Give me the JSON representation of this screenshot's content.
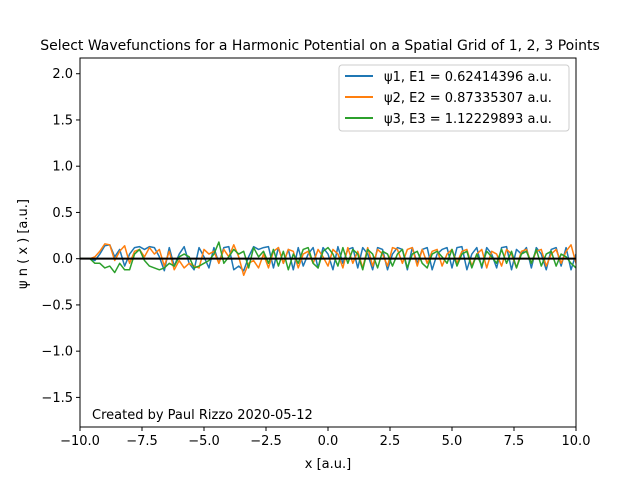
{
  "chart_data": {
    "type": "line",
    "title": "Select Wavefunctions for a Harmonic Potential on a Spatial Grid of 1, 2, 3 Points",
    "xlabel": "x [a.u.]",
    "ylabel": "ψ n ( x ) [a.u.]",
    "xlim": [
      -10,
      10
    ],
    "ylim": [
      -1.82,
      2.17
    ],
    "xticks": [
      -10.0,
      -7.5,
      -5.0,
      -2.5,
      0.0,
      2.5,
      5.0,
      7.5,
      10.0
    ],
    "yticks": [
      -1.5,
      -1.0,
      -0.5,
      0.0,
      0.5,
      1.0,
      1.5,
      2.0
    ],
    "grid": false,
    "legend_position": "top-right",
    "annotation": "Created by Paul Rizzo 2020-05-12",
    "zero_line": {
      "y": 0,
      "color": "#000000"
    },
    "series": [
      {
        "name": "ψ1, E1 = 0.62414396 a.u.",
        "color": "#1f77b4",
        "x": [
          -10,
          -9.8,
          -9.6,
          -9.4,
          -9.2,
          -9,
          -8.8,
          -8.6,
          -8.4,
          -8.2,
          -8,
          -7.8,
          -7.6,
          -7.4,
          -7.2,
          -7,
          -6.8,
          -6.6,
          -6.4,
          -6.2,
          -6,
          -5.8,
          -5.6,
          -5.4,
          -5.2,
          -5,
          -4.8,
          -4.6,
          -4.4,
          -4.2,
          -4,
          -3.8,
          -3.6,
          -3.4,
          -3.2,
          -3,
          -2.8,
          -2.6,
          -2.4,
          -2.2,
          -2,
          -1.8,
          -1.6,
          -1.4,
          -1.2,
          -1,
          -0.8,
          -0.6,
          -0.4,
          -0.2,
          0,
          0.2,
          0.4,
          0.6,
          0.8,
          1,
          1.2,
          1.4,
          1.6,
          1.8,
          2,
          2.2,
          2.4,
          2.6,
          2.8,
          3,
          3.2,
          3.4,
          3.6,
          3.8,
          4,
          4.2,
          4.4,
          4.6,
          4.8,
          5,
          5.2,
          5.4,
          5.6,
          5.8,
          6,
          6.2,
          6.4,
          6.6,
          6.8,
          7,
          7.2,
          7.4,
          7.6,
          7.8,
          8,
          8.2,
          8.4,
          8.6,
          8.8,
          9,
          9.2,
          9.4,
          9.6,
          9.8,
          10
        ],
        "y": [
          0,
          0,
          0,
          -0.02,
          0.05,
          0.14,
          0.15,
          0.02,
          0.1,
          -0.08,
          0.05,
          0.12,
          0.13,
          0.1,
          0.13,
          0.12,
          0.02,
          -0.13,
          0.12,
          -0.08,
          0.05,
          0.13,
          -0.05,
          -0.12,
          0.12,
          0.02,
          -0.1,
          0.12,
          -0.05,
          0.12,
          0.13,
          -0.12,
          -0.08,
          -0.13,
          0.02,
          0.13,
          0.1,
          0.12,
          0.13,
          -0.1,
          0.12,
          -0.05,
          0.1,
          -0.12,
          0.12,
          -0.08,
          0.05,
          0.12,
          -0.1,
          0.12,
          0.05,
          -0.12,
          0.13,
          -0.05,
          0.1,
          0.12,
          -0.1,
          0.12,
          0.05,
          -0.12,
          0.12,
          0.1,
          -0.12,
          0.05,
          0.12,
          0.1,
          -0.12,
          0.12,
          -0.05,
          0.1,
          0.12,
          -0.12,
          0.05,
          0.1,
          0.12,
          -0.1,
          0.12,
          0.13,
          -0.12,
          0.05,
          0.12,
          -0.1,
          0.12,
          0.05,
          -0.1,
          0.12,
          0.13,
          -0.12,
          0.1,
          0.05,
          0.12,
          -0.1,
          0.12,
          0.05,
          -0.12,
          0.1,
          0.12,
          -0.08,
          0.12,
          -0.12,
          0.05
        ]
      },
      {
        "name": "ψ2, E2 = 0.87335307 a.u.",
        "color": "#ff7f0e",
        "x": [
          -10,
          -9.8,
          -9.6,
          -9.4,
          -9.2,
          -9,
          -8.8,
          -8.6,
          -8.4,
          -8.2,
          -8,
          -7.8,
          -7.6,
          -7.4,
          -7.2,
          -7,
          -6.8,
          -6.6,
          -6.4,
          -6.2,
          -6,
          -5.8,
          -5.6,
          -5.4,
          -5.2,
          -5,
          -4.8,
          -4.6,
          -4.4,
          -4.2,
          -4,
          -3.8,
          -3.6,
          -3.4,
          -3.2,
          -3,
          -2.8,
          -2.6,
          -2.4,
          -2.2,
          -2,
          -1.8,
          -1.6,
          -1.4,
          -1.2,
          -1,
          -0.8,
          -0.6,
          -0.4,
          -0.2,
          0,
          0.2,
          0.4,
          0.6,
          0.8,
          1,
          1.2,
          1.4,
          1.6,
          1.8,
          2,
          2.2,
          2.4,
          2.6,
          2.8,
          3,
          3.2,
          3.4,
          3.6,
          3.8,
          4,
          4.2,
          4.4,
          4.6,
          4.8,
          5,
          5.2,
          5.4,
          5.6,
          5.8,
          6,
          6.2,
          6.4,
          6.6,
          6.8,
          7,
          7.2,
          7.4,
          7.6,
          7.8,
          8,
          8.2,
          8.4,
          8.6,
          8.8,
          9,
          9.2,
          9.4,
          9.6,
          9.8,
          10
        ],
        "y": [
          0,
          0,
          0,
          0.02,
          0.08,
          0.16,
          0.15,
          -0.02,
          0.08,
          0.14,
          -0.05,
          0.08,
          0.1,
          0.02,
          0.12,
          0.05,
          0.1,
          -0.08,
          0.08,
          -0.12,
          -0.02,
          -0.1,
          -0.05,
          -0.08,
          -0.1,
          0.1,
          0.05,
          0.08,
          -0.05,
          0.1,
          0.02,
          0.15,
          0.02,
          -0.18,
          -0.05,
          -0.02,
          -0.1,
          0.05,
          -0.1,
          0.08,
          0.12,
          -0.05,
          0.1,
          0.08,
          -0.1,
          0.05,
          0.08,
          -0.05,
          0.1,
          0.02,
          -0.08,
          0.1,
          0.05,
          -0.1,
          0.12,
          -0.05,
          0.08,
          -0.1,
          0.12,
          -0.08,
          0.1,
          0.05,
          -0.08,
          0.12,
          0.1,
          -0.05,
          0.1,
          0.12,
          -0.08,
          0.1,
          -0.05,
          0.08,
          0.1,
          -0.08,
          0.05,
          0.1,
          -0.05,
          0.08,
          0.1,
          -0.08,
          0.05,
          0.1,
          -0.1,
          0.08,
          0.05,
          -0.08,
          0.1,
          0.05,
          -0.1,
          0.08,
          0.1,
          -0.05,
          0.08,
          0.1,
          -0.08,
          0.05,
          0.1,
          -0.05,
          0.08,
          0.15,
          -0.05
        ]
      },
      {
        "name": "ψ3, E3 = 1.12229893 a.u.",
        "color": "#2ca02c",
        "x": [
          -10,
          -9.8,
          -9.6,
          -9.4,
          -9.2,
          -9,
          -8.8,
          -8.6,
          -8.4,
          -8.2,
          -8,
          -7.8,
          -7.6,
          -7.4,
          -7.2,
          -7,
          -6.8,
          -6.6,
          -6.4,
          -6.2,
          -6,
          -5.8,
          -5.6,
          -5.4,
          -5.2,
          -5,
          -4.8,
          -4.6,
          -4.4,
          -4.2,
          -4,
          -3.8,
          -3.6,
          -3.4,
          -3.2,
          -3,
          -2.8,
          -2.6,
          -2.4,
          -2.2,
          -2,
          -1.8,
          -1.6,
          -1.4,
          -1.2,
          -1,
          -0.8,
          -0.6,
          -0.4,
          -0.2,
          0,
          0.2,
          0.4,
          0.6,
          0.8,
          1,
          1.2,
          1.4,
          1.6,
          1.8,
          2,
          2.2,
          2.4,
          2.6,
          2.8,
          3,
          3.2,
          3.4,
          3.6,
          3.8,
          4,
          4.2,
          4.4,
          4.6,
          4.8,
          5,
          5.2,
          5.4,
          5.6,
          5.8,
          6,
          6.2,
          6.4,
          6.6,
          6.8,
          7,
          7.2,
          7.4,
          7.6,
          7.8,
          8,
          8.2,
          8.4,
          8.6,
          8.8,
          9,
          9.2,
          9.4,
          9.6,
          9.8,
          10
        ],
        "y": [
          0,
          0,
          0,
          -0.05,
          -0.05,
          -0.1,
          -0.08,
          -0.15,
          -0.05,
          -0.12,
          -0.12,
          0.05,
          0.1,
          -0.02,
          -0.08,
          -0.1,
          -0.12,
          -0.1,
          -0.05,
          -0.08,
          0.02,
          0.05,
          0.02,
          -0.1,
          -0.08,
          -0.05,
          -0.02,
          0.05,
          0.18,
          -0.05,
          0.02,
          0.1,
          0.05,
          0.08,
          -0.1,
          0.12,
          0.02,
          0.08,
          -0.05,
          0.1,
          -0.08,
          0.08,
          -0.12,
          0.05,
          -0.05,
          0.1,
          0.12,
          -0.05,
          -0.1,
          0.08,
          0.12,
          0.05,
          -0.08,
          0.12,
          -0.05,
          0.1,
          0.05,
          -0.12,
          0.1,
          0.05,
          -0.1,
          0.08,
          0.05,
          -0.08,
          0.05,
          0.1,
          -0.1,
          0.05,
          0.08,
          -0.05,
          -0.1,
          0.05,
          0.08,
          0.02,
          -0.05,
          0.1,
          -0.08,
          0.05,
          0.08,
          -0.1,
          0.05,
          -0.08,
          0.08,
          0.02,
          -0.05,
          0.1,
          -0.05,
          0.08,
          -0.1,
          0.05,
          0.08,
          -0.05,
          0.1,
          -0.08,
          0.05,
          0.08,
          -0.08,
          0.05,
          0.02,
          -0.05,
          -0.1
        ]
      }
    ]
  }
}
